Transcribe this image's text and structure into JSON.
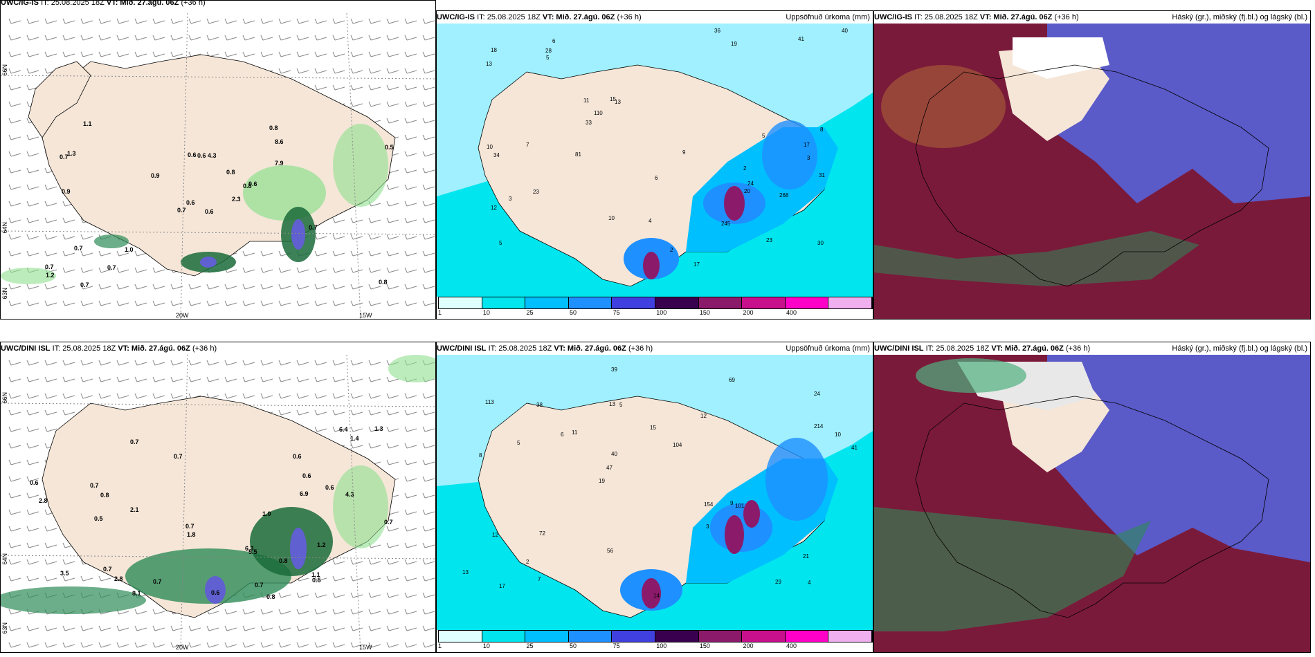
{
  "rows": [
    {
      "wind_panel": {
        "model": "UWC/IG-IS",
        "it": "IT: 25.08.2025 18Z",
        "vt": "VT: Mið. 27.ágú. 06Z",
        "lead": "(+36 h)",
        "precip_labels": [
          "0.6",
          "0.7",
          "0.6",
          "0.7",
          "0.8",
          "1.0",
          "0.8",
          "4.3",
          "8.6",
          "2.3",
          "1.1",
          "0.8",
          "0.9",
          "0.5",
          "0.7",
          "7.9",
          "0.7",
          "0.6",
          "0.8",
          "0.7",
          "0.9",
          "1.2",
          "0.7",
          "0.6",
          "0.6",
          "0.7",
          "1.3"
        ]
      },
      "precip_panel": {
        "model": "UWC/IG-IS",
        "it": "IT: 25.08.2025 18Z",
        "vt": "VT: Mið. 27.ágú. 06Z",
        "lead": "(+36 h)",
        "title": "Uppsöfnuð úrkoma (mm)",
        "values": [
          "2",
          "3",
          "5",
          "6",
          "13",
          "23",
          "12",
          "19",
          "11",
          "17",
          "13",
          "10",
          "18",
          "30",
          "10",
          "8",
          "6",
          "9",
          "15",
          "23",
          "40",
          "41",
          "33",
          "31",
          "36",
          "28",
          "24",
          "34",
          "5",
          "5",
          "2",
          "245",
          "110",
          "81",
          "17",
          "268",
          "20",
          "7",
          "4",
          "3"
        ]
      },
      "cloud_panel": {
        "model": "UWC/IG-IS",
        "it": "IT: 25.08.2025 18Z",
        "vt": "VT: Mið. 27.ágú. 06Z",
        "lead": "(+36 h)",
        "title": "Háský (gr.), miðský (fj.bl.) og lágský (bl.)"
      }
    },
    {
      "wind_panel": {
        "model": "UWC/DINI ISL",
        "it": "IT: 25.08.2025 18Z",
        "vt": "VT: Mið. 27.ágú. 06Z",
        "lead": "(+36 h)",
        "precip_labels": [
          "0.8",
          "0.7",
          "0.7",
          "0.7",
          "0.6",
          "0.7",
          "0.7",
          "2.1",
          "1.8",
          "2.8",
          "3.5",
          "0.6",
          "0.7",
          "6.3",
          "6.9",
          "6.4",
          "2.8",
          "1.4",
          "1.2",
          "4.3",
          "1.1",
          "5.5",
          "8.1",
          "0.5",
          "1.0",
          "0.6",
          "0.5",
          "0.8",
          "0.6",
          "0.7",
          "0.8",
          "1.3",
          "0.6",
          "0.7"
        ]
      },
      "precip_panel": {
        "model": "UWC/DINI ISL",
        "it": "IT: 25.08.2025 18Z",
        "vt": "VT: Mið. 27.ágú. 06Z",
        "lead": "(+36 h)",
        "title": "Uppsöfnuð úrkoma (mm)",
        "values": [
          "4",
          "8",
          "24",
          "19",
          "12",
          "17",
          "13",
          "15",
          "12",
          "11",
          "13",
          "2",
          "5",
          "104",
          "101",
          "113",
          "39",
          "41",
          "154",
          "214",
          "47",
          "56",
          "40",
          "38",
          "69",
          "72",
          "29",
          "21",
          "9",
          "14",
          "6",
          "5",
          "3",
          "7",
          "10"
        ]
      },
      "cloud_panel": {
        "model": "UWC/DINI ISL",
        "it": "IT: 25.08.2025 18Z",
        "vt": "VT: Mið. 27.ágú. 06Z",
        "lead": "(+36 h)",
        "title": "Háský (gr.), miðský (fj.bl.) og lágský (bl.)"
      }
    }
  ],
  "axis_labels": {
    "lat66": "66N",
    "lat64": "64N",
    "lat63": "63N",
    "lon20": "20W",
    "lon15": "15W"
  },
  "colorbar": {
    "ticks": [
      "1",
      "10",
      "25",
      "50",
      "75",
      "100",
      "150",
      "200",
      "400"
    ],
    "colors": [
      "#e0ffff",
      "#00e5ee",
      "#00bfff",
      "#1e90ff",
      "#4040e0",
      "#3a0050",
      "#8b1a6b",
      "#c8108c",
      "#ff00c8",
      "#f0b0f0"
    ]
  },
  "colors": {
    "land": "#f5e6d8",
    "sea_precip": "#00e5ee",
    "light_precip": "#a0f0ff",
    "cloud_high": "#e0e0e0",
    "cloud_mid": "#5a5ac8",
    "cloud_low": "#7a1a3a",
    "green_precip": "#2e8b57"
  }
}
